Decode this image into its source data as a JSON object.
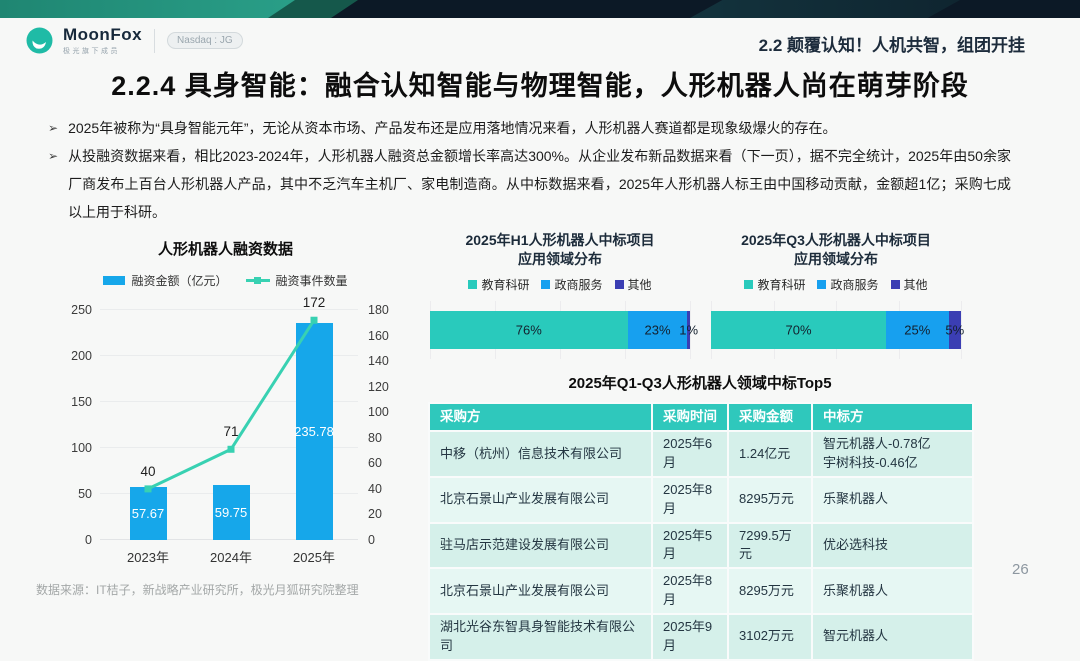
{
  "header": {
    "brand": {
      "name": "MoonFox",
      "tagline": "极光旗下成员",
      "badge": "Nasdaq : JG"
    },
    "section_title": "2.2 颠覆认知！人机共智，组团开挂"
  },
  "title": "2.2.4 具身智能：融合认知智能与物理智能，人形机器人尚在萌芽阶段",
  "bullets": [
    "2025年被称为“具身智能元年”，无论从资本市场、产品发布还是应用落地情况来看，人形机器人赛道都是现象级爆火的存在。",
    "从投融资数据来看，相比2023-2024年，人形机器人融资总金额增长率高达300%。从企业发布新品数据来看（下一页），据不完全统计，2025年由50余家厂商发布上百台人形机器人产品，其中不乏汽车主机厂、家电制造商。从中标数据来看，2025年人形机器人标王由中国移动贡献，金额超1亿；采购七成以上用于科研。"
  ],
  "chart_data": [
    {
      "type": "bar",
      "title": "人形机器人融资数据",
      "categories": [
        "2023年",
        "2024年",
        "2025年"
      ],
      "series": [
        {
          "name": "融资金额（亿元）",
          "type": "bar",
          "color": "#16a7ea",
          "axis": "left",
          "values": [
            57.67,
            59.75,
            235.78
          ]
        },
        {
          "name": "融资事件数量",
          "type": "line",
          "color": "#38d1b2",
          "axis": "right",
          "values": [
            40,
            71,
            172
          ]
        }
      ],
      "left_axis": {
        "min": 0,
        "max": 250,
        "ticks": [
          0,
          50,
          100,
          150,
          200,
          250
        ]
      },
      "right_axis": {
        "min": 0,
        "max": 180,
        "ticks": [
          0,
          20,
          40,
          60,
          80,
          100,
          120,
          140,
          160,
          180
        ]
      },
      "grid": true,
      "legend_position": "top"
    },
    {
      "type": "bar",
      "subtype": "stacked-horizontal",
      "title": "2025年H1人形机器人中标项目\n应用领域分布",
      "segments": [
        {
          "label": "教育科研",
          "value": 76,
          "color": "#29cabc"
        },
        {
          "label": "政商服务",
          "value": 23,
          "color": "#17a0ef"
        },
        {
          "label": "其他",
          "value": 1,
          "color": "#3b3eb3"
        }
      ],
      "xlim": [
        0,
        100
      ]
    },
    {
      "type": "bar",
      "subtype": "stacked-horizontal",
      "title": "2025年Q3人形机器人中标项目\n应用领域分布",
      "segments": [
        {
          "label": "教育科研",
          "value": 70,
          "color": "#29cabc"
        },
        {
          "label": "政商服务",
          "value": 25,
          "color": "#17a0ef"
        },
        {
          "label": "其他",
          "value": 5,
          "color": "#3b3eb3"
        }
      ],
      "xlim": [
        0,
        100
      ]
    }
  ],
  "table": {
    "title": "2025年Q1-Q3人形机器人领域中标Top5",
    "headers": [
      "采购方",
      "采购时间",
      "采购金额",
      "中标方"
    ],
    "rows": [
      [
        "中移（杭州）信息技术有限公司",
        "2025年6月",
        "1.24亿元",
        "智元机器人-0.78亿\n宇树科技-0.46亿"
      ],
      [
        "北京石景山产业发展有限公司",
        "2025年8月",
        "8295万元",
        "乐聚机器人"
      ],
      [
        "驻马店示范建设发展有限公司",
        "2025年5月",
        "7299.5万元",
        "优必选科技"
      ],
      [
        "北京石景山产业发展有限公司",
        "2025年8月",
        "8295万元",
        "乐聚机器人"
      ],
      [
        "湖北光谷东智具身智能技术有限公司",
        "2025年9月",
        "3102万元",
        "智元机器人"
      ]
    ],
    "header_bg": "#2fc8bc"
  },
  "footer": {
    "source": "数据来源：IT桔子，新战略产业研究所，极光月狐研究院整理",
    "page": "26"
  },
  "theme": {
    "topbar_navy": "#0c1926",
    "topbar_teal": "#2aa089",
    "accent_teal": "#2fc8bc",
    "accent_blue": "#16a7ea"
  }
}
